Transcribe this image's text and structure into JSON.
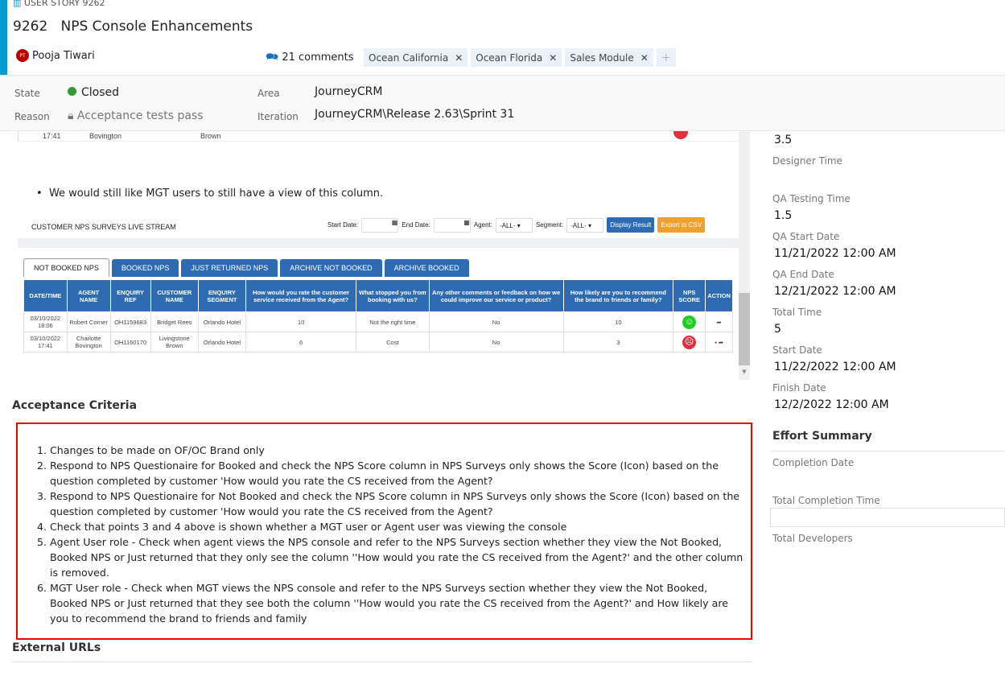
{
  "header": {
    "type_label": "USER STORY 9262",
    "id": "9262",
    "title": "NPS Console Enhancements",
    "assignee": "Pooja Tiwari",
    "assignee_initials": "PT",
    "comments": "21 comments",
    "tags": [
      "Ocean California",
      "Ocean Florida",
      "Sales Module"
    ]
  },
  "fields": {
    "state_label": "State",
    "state": "Closed",
    "reason_label": "Reason",
    "reason": "Acceptance tests pass",
    "area_label": "Area",
    "area": "JourneyCRM",
    "iteration_label": "Iteration",
    "iteration": "JourneyCRM\\Release 2.63\\Sprint 31",
    "state_color": "#339933"
  },
  "description": {
    "partial_row": [
      "17:41",
      "Bovington",
      "Brown"
    ],
    "bullet": "We would still like MGT users to still have a view of this column."
  },
  "embedded": {
    "title": "CUSTOMER NPS SURVEYS LIVE STREAM",
    "start_date": "Start Date:",
    "end_date": "End Date:",
    "agent": "Agent:",
    "agent_value": "-ALL-",
    "segment": "Segment:",
    "segment_value": "-ALL-",
    "display_btn": "Display Result",
    "export_btn": "Export to CSV",
    "tabs": [
      "NOT BOOKED NPS",
      "BOOKED NPS",
      "JUST RETURNED NPS",
      "ARCHIVE NOT BOOKED",
      "ARCHIVE BOOKED"
    ],
    "columns": [
      "DATE/TIME",
      "AGENT NAME",
      "ENQUIRY REF",
      "CUSTOMER NAME",
      "ENQUIRY SEGMENT",
      "How would you rate the customer service received from the Agent?",
      "What stopped you from booking with us?",
      "Any other comments or feedback on how we could improve our service or product?",
      "How likely are you to recommend the brand to friends or family?",
      "NPS SCORE",
      "ACTION"
    ],
    "rows": [
      [
        "03/10/2022 18:06",
        "Robert Corner",
        "OH1159683",
        "Bridget Rees",
        "Orlando Hotel",
        "10",
        "Not the right time",
        "No",
        "10"
      ],
      [
        "03/10/2022 17:41",
        "Charlotte Bovington",
        "OH1160170",
        "Livingstone Brown",
        "Orlando Hotel",
        "6",
        "Cost",
        "No",
        "3"
      ]
    ]
  },
  "acceptance": {
    "heading": "Acceptance Criteria",
    "items": [
      "Changes to be made on OF/OC Brand only",
      "Respond to NPS Questionaire for Booked and check the NPS Score column in NPS Surveys only shows the Score (Icon) based on the question completed by customer 'How would you rate the CS received from the Agent?",
      "Respond to NPS Questionaire for Not Booked and check the NPS Score column in NPS Surveys only shows the Score (Icon) based on the question completed by customer 'How would you rate the CS received from the Agent?",
      "Check that points 3 and 4 above is shown whether a MGT user or Agent user was viewing the console",
      "Agent User role - Check when agent views the NPS console and refer to the NPS Surveys section whether they view the Not Booked, Booked NPS or Just returned that they only see the column ''How would you rate the CS received from the Agent?' and the other column is removed.",
      "MGT User role - Check when MGT views the NPS console and refer to the NPS Surveys section whether they view the Not Booked, Booked NPS or Just returned that they see both the column ''How would you rate the CS received from the Agent?' and How likely are you to recommend the brand to friends and family"
    ]
  },
  "external_urls": "External URLs",
  "right": {
    "top_value": "3.5",
    "designer_time": "Designer Time",
    "qa_testing_time": "QA Testing Time",
    "qa_testing_value": "1.5",
    "qa_start": "QA Start Date",
    "qa_start_value": "11/21/2022 12:00 AM",
    "qa_end": "QA End Date",
    "qa_end_value": "12/21/2022 12:00 AM",
    "total_time": "Total Time",
    "total_time_value": "5",
    "start_date": "Start Date",
    "start_date_value": "11/22/2022 12:00 AM",
    "finish_date": "Finish Date",
    "finish_date_value": "12/2/2022 12:00 AM",
    "effort_summary": "Effort Summary",
    "completion_date": "Completion Date",
    "total_completion_time": "Total Completion Time",
    "total_developers": "Total Developers"
  }
}
